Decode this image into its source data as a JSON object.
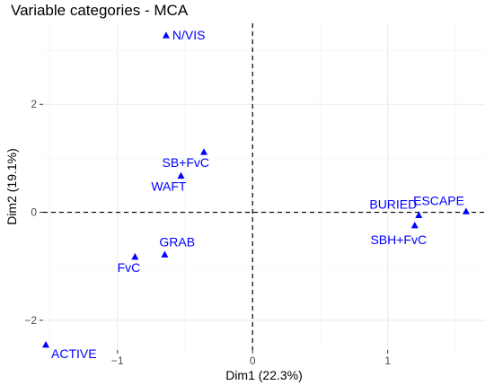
{
  "chart_data": {
    "type": "scatter",
    "title": "Variable categories - MCA",
    "xlabel": "Dim1 (22.3%)",
    "ylabel": "Dim2 (19.1%)",
    "xlim": [
      -1.55,
      1.72
    ],
    "ylim": [
      -2.55,
      3.5
    ],
    "xticks": [
      -1,
      0,
      1
    ],
    "yticks": [
      -2,
      0,
      2
    ],
    "grid": true,
    "reference_lines": {
      "x": 0,
      "y": 0,
      "style": "dashed"
    },
    "marker": "triangle",
    "color": "#0000ff",
    "points": [
      {
        "label": "N/VIS",
        "x": -0.64,
        "y": 3.28,
        "label_pos": "right"
      },
      {
        "label": "SB+FvC",
        "x": -0.36,
        "y": 1.12,
        "label_pos": "below-left"
      },
      {
        "label": "WAFT",
        "x": -0.53,
        "y": 0.68,
        "label_pos": "below-left"
      },
      {
        "label": "GRAB",
        "x": -0.65,
        "y": -0.78,
        "label_pos": "above-right"
      },
      {
        "label": "FvC",
        "x": -0.87,
        "y": -0.82,
        "label_pos": "below-left"
      },
      {
        "label": "ACTIVE",
        "x": -1.53,
        "y": -2.45,
        "label_pos": "below-right"
      },
      {
        "label": "BURIED",
        "x": 1.23,
        "y": -0.05,
        "label_pos": "above-left"
      },
      {
        "label": "ESCAPE",
        "x": 1.58,
        "y": 0.02,
        "label_pos": "above-left"
      },
      {
        "label": "SBH+FvC",
        "x": 1.2,
        "y": -0.24,
        "label_pos": "below"
      }
    ]
  }
}
